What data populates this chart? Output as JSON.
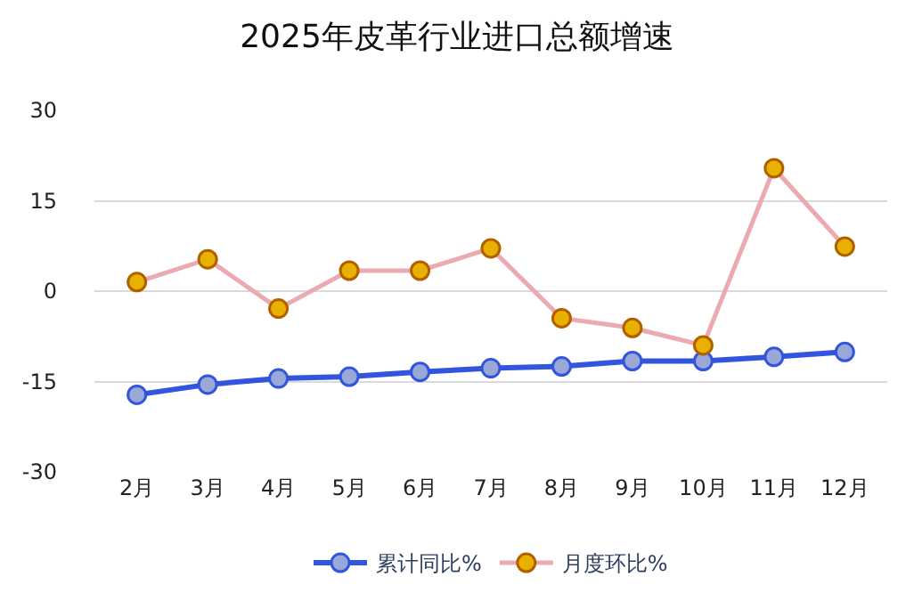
{
  "chart_data": {
    "type": "line",
    "title": "2025年皮革行业进口总额增速",
    "categories": [
      "2月",
      "3月",
      "4月",
      "5月",
      "6月",
      "7月",
      "8月",
      "9月",
      "10月",
      "11月",
      "12月"
    ],
    "series": [
      {
        "name": "累计同比%",
        "color": "#3355dd",
        "values": [
          -17.2,
          -15.5,
          -14.5,
          -14.2,
          -13.4,
          -12.8,
          -12.5,
          -11.6,
          -11.6,
          -10.9,
          -10.1
        ]
      },
      {
        "name": "月度环比%",
        "color": "#eaaab0",
        "values": [
          1.5,
          5.3,
          -2.9,
          3.4,
          3.4,
          7.1,
          -4.5,
          -6.1,
          -9.0,
          20.4,
          7.4
        ]
      }
    ],
    "ylim": [
      -30,
      30
    ],
    "yticks": [
      -30,
      -15,
      0,
      15,
      30
    ],
    "grid": "y",
    "legend": "bottom",
    "marker": "circle",
    "line_style": "solid"
  }
}
